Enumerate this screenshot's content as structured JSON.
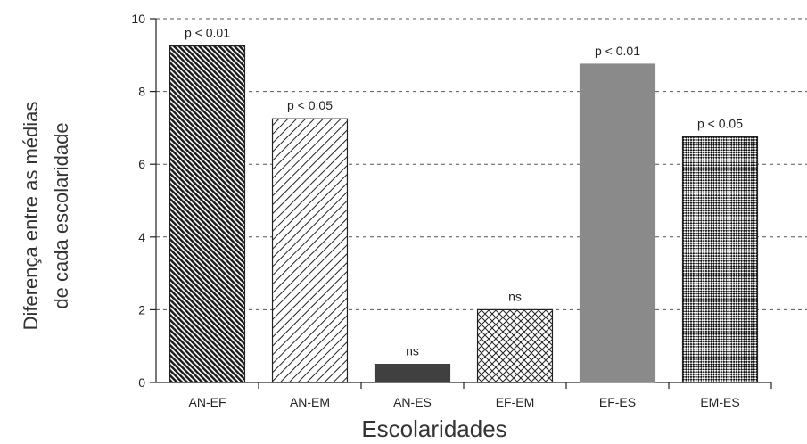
{
  "chart_data": {
    "type": "bar",
    "categories": [
      "AN-EF",
      "AN-EM",
      "AN-ES",
      "EF-EM",
      "EF-ES",
      "EM-ES"
    ],
    "values": [
      9.25,
      7.25,
      0.5,
      2.0,
      8.75,
      6.75
    ],
    "data_labels": [
      "p < 0.01",
      "p < 0.05",
      "ns",
      "ns",
      "p < 0.01",
      "p < 0.05"
    ],
    "xlabel": "Escolaridades",
    "ylabel_lines": [
      "Diferença entre as médias",
      "de cada escolaridade"
    ],
    "ylim": [
      0,
      10
    ],
    "yticks": [
      "0",
      "2",
      "4",
      "6",
      "8",
      "10"
    ],
    "grid": "horizontal-dashed",
    "bar_fills": [
      "dense-diagonal-hatch",
      "light-diagonal-hatch",
      "solid-dark",
      "cross-hatch",
      "solid-gray",
      "dense-checker"
    ],
    "colors": {
      "solid_dark": "#404040",
      "solid_gray": "#8a8a8a",
      "hatch": "#222222",
      "grid": "#555555"
    }
  }
}
